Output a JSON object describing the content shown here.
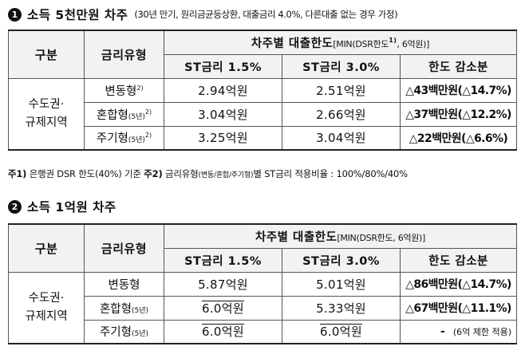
{
  "section1": {
    "number": "1",
    "title": "소득 5천만원 차주",
    "condition": "(30년 만기, 원리금균등상환, 대출금리 4.0%, 다른대출 없는 경우 가정)"
  },
  "section2": {
    "number": "2",
    "title": "소득 1억원 차주"
  },
  "table1": {
    "col_category": "구분",
    "col_rate_type": "금리유형",
    "group_header_main": "차주별 대출한도",
    "group_header_detail": "[MIN(DSR한도",
    "group_header_sup": "1)",
    "group_header_tail": ", 6억원)]",
    "col_st15": "ST금리 1.5%",
    "col_st30": "ST금리 3.0%",
    "col_decrease": "한도 감소분",
    "region": "수도권·",
    "region2": "규제지역",
    "rows": [
      {
        "type": "변동형",
        "type_sub": "",
        "type_sup": "2)",
        "st15": "2.94억원",
        "st30": "2.51억원",
        "decrease": "△43백만원(△14.7%)"
      },
      {
        "type": "혼합형",
        "type_sub": "(5년)",
        "type_sup": "2)",
        "st15": "3.04억원",
        "st30": "2.66억원",
        "decrease": "△37백만원(△12.2%)"
      },
      {
        "type": "주기형",
        "type_sub": "(5년)",
        "type_sup": "2)",
        "st15": "3.25억원",
        "st30": "3.04억원",
        "decrease": "△22백만원(△6.6%)"
      }
    ]
  },
  "footnote": {
    "n1_label": "주1)",
    "n1_text": " 은행권 DSR 한도(40%) 기준 ",
    "n2_label": "주2)",
    "n2_text_a": " 금리유형",
    "n2_small": "(변동/혼합/주기형)",
    "n2_text_b": "별 ST금리 적용비율 : 100%/80%/40%"
  },
  "table2": {
    "col_category": "구분",
    "col_rate_type": "금리유형",
    "group_header_main": "차주별 대출한도",
    "group_header_detail": "[MIN(DSR한도, 6억원)]",
    "col_st15": "ST금리 1.5%",
    "col_st30": "ST금리 3.0%",
    "col_decrease": "한도 감소분",
    "region": "수도권·",
    "region2": "규제지역",
    "rows": [
      {
        "type": "변동형",
        "type_sub": "",
        "st15": "5.87억원",
        "st30": "5.01억원",
        "decrease": "△86백만원(△14.7%)"
      },
      {
        "type": "혼합형",
        "type_sub": "(5년)",
        "st15": "6.0억원",
        "st30": "5.33억원",
        "decrease": "△67백만원(△11.1%)"
      },
      {
        "type": "주기형",
        "type_sub": "(5년)",
        "st15": "6.0억원",
        "st30": "6.0억원",
        "decrease": "-",
        "decrease_note": "(6억 제한 적용)"
      }
    ]
  }
}
